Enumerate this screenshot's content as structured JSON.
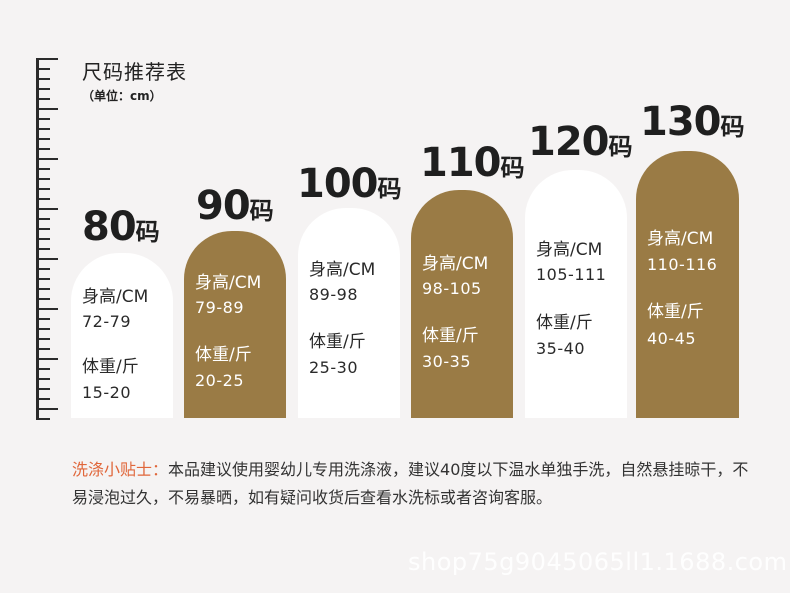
{
  "title": "尺码推荐表",
  "unit": "（单位：cm）",
  "sizes": [
    {
      "num": "80",
      "ma": "码",
      "height_label": "身高/CM",
      "height": "72-79",
      "weight_label": "体重/斤",
      "weight": "15-20"
    },
    {
      "num": "90",
      "ma": "码",
      "height_label": "身高/CM",
      "height": "79-89",
      "weight_label": "体重/斤",
      "weight": "20-25"
    },
    {
      "num": "100",
      "ma": "码",
      "height_label": "身高/CM",
      "height": "89-98",
      "weight_label": "体重/斤",
      "weight": "25-30"
    },
    {
      "num": "110",
      "ma": "码",
      "height_label": "身高/CM",
      "height": "98-105",
      "weight_label": "体重/斤",
      "weight": "30-35"
    },
    {
      "num": "120",
      "ma": "码",
      "height_label": "身高/CM",
      "height": "105-111",
      "weight_label": "体重/斤",
      "weight": "35-40"
    },
    {
      "num": "130",
      "ma": "码",
      "height_label": "身高/CM",
      "height": "110-116",
      "weight_label": "体重/斤",
      "weight": "40-45"
    }
  ],
  "tips": {
    "label": "洗涤小贴士：",
    "text": "本品建议使用婴幼儿专用洗涤液，建议40度以下温水单独手洗，自然悬挂晾干，不易浸泡过久，不易暴晒，如有疑问收货后查看水洗标或者咨询客服。"
  },
  "watermark": "shop75g9045065ll1.1688.com",
  "colors": {
    "dark_card": "#9a7b45",
    "light_card": "#ffffff",
    "tip_label": "#e0663a"
  }
}
